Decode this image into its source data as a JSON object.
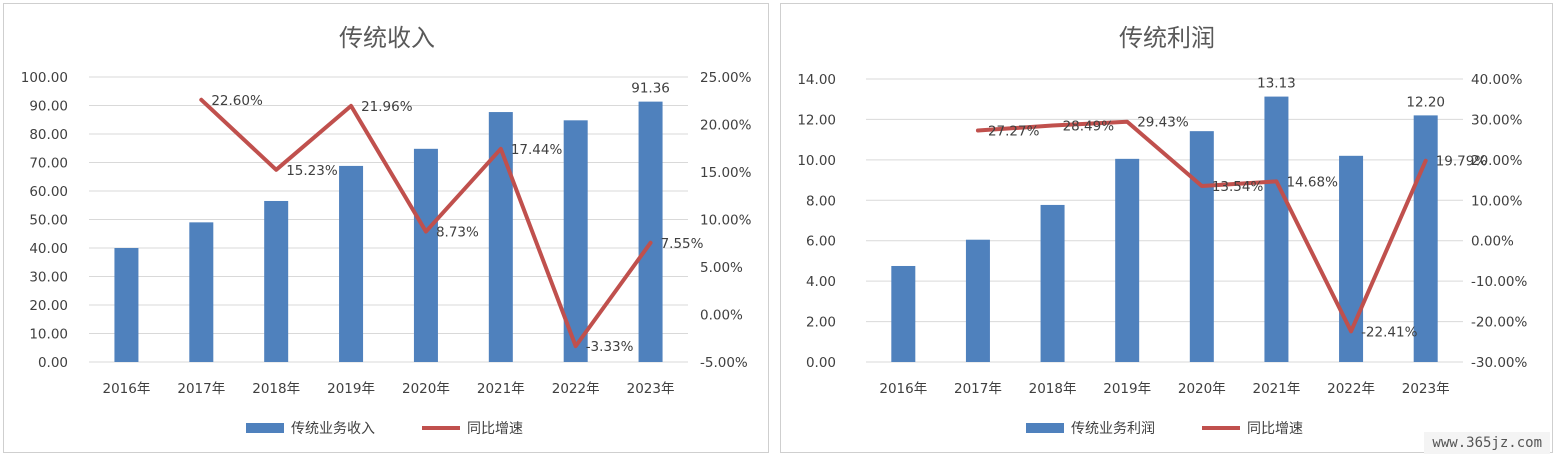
{
  "chart_data": [
    {
      "type": "bar",
      "title": "传统收入",
      "categories": [
        "2016年",
        "2017年",
        "2018年",
        "2019年",
        "2020年",
        "2021年",
        "2022年",
        "2023年"
      ],
      "series": [
        {
          "name": "传统业务收入",
          "type": "bar",
          "axis": "left",
          "color": "#4f81bd",
          "values": [
            40.0,
            49.0,
            56.5,
            68.8,
            74.8,
            87.7,
            84.8,
            91.36
          ],
          "labels": [
            "",
            "",
            "",
            "",
            "",
            "",
            "",
            "91.36"
          ]
        },
        {
          "name": "同比增速",
          "type": "line",
          "axis": "right",
          "color": "#c0504d",
          "values": [
            null,
            22.6,
            15.23,
            21.96,
            8.73,
            17.44,
            -3.33,
            7.55
          ],
          "labels": [
            "",
            "22.60%",
            "15.23%",
            "21.96%",
            "8.73%",
            "17.44%",
            "-3.33%",
            "7.55%"
          ]
        }
      ],
      "left_axis": {
        "min": 0,
        "max": 100,
        "step": 10,
        "ticks": [
          "0.00",
          "10.00",
          "20.00",
          "30.00",
          "40.00",
          "50.00",
          "60.00",
          "70.00",
          "80.00",
          "90.00",
          "100.00"
        ]
      },
      "right_axis": {
        "min": -5,
        "max": 25,
        "step": 5,
        "ticks": [
          "-5.00%",
          "0.00%",
          "5.00%",
          "10.00%",
          "15.00%",
          "20.00%",
          "25.00%"
        ]
      },
      "grid": true,
      "legend": "bottom"
    },
    {
      "type": "bar",
      "title": "传统利润",
      "categories": [
        "2016年",
        "2017年",
        "2018年",
        "2019年",
        "2020年",
        "2021年",
        "2022年",
        "2023年"
      ],
      "series": [
        {
          "name": "传统业务利润",
          "type": "bar",
          "axis": "left",
          "color": "#4f81bd",
          "values": [
            4.75,
            6.05,
            7.77,
            10.05,
            11.42,
            13.13,
            10.2,
            12.2
          ],
          "labels": [
            "",
            "",
            "",
            "",
            "",
            "13.13",
            "",
            "12.20"
          ]
        },
        {
          "name": "同比增速",
          "type": "line",
          "axis": "right",
          "color": "#c0504d",
          "values": [
            null,
            27.27,
            28.49,
            29.43,
            13.54,
            14.68,
            -22.41,
            19.79
          ],
          "labels": [
            "",
            "27.27%",
            "28.49%",
            "29.43%",
            "13.54%",
            "14.68%",
            "-22.41%",
            "19.79%"
          ]
        }
      ],
      "left_axis": {
        "min": 0,
        "max": 14,
        "step": 2,
        "ticks": [
          "0.00",
          "2.00",
          "4.00",
          "6.00",
          "8.00",
          "10.00",
          "12.00",
          "14.00"
        ]
      },
      "right_axis": {
        "min": -30,
        "max": 40,
        "step": 10,
        "ticks": [
          "-30.00%",
          "-20.00%",
          "-10.00%",
          "0.00%",
          "10.00%",
          "20.00%",
          "30.00%",
          "40.00%"
        ]
      },
      "grid": true,
      "legend": "bottom"
    }
  ],
  "watermark": "www.365jz.com"
}
